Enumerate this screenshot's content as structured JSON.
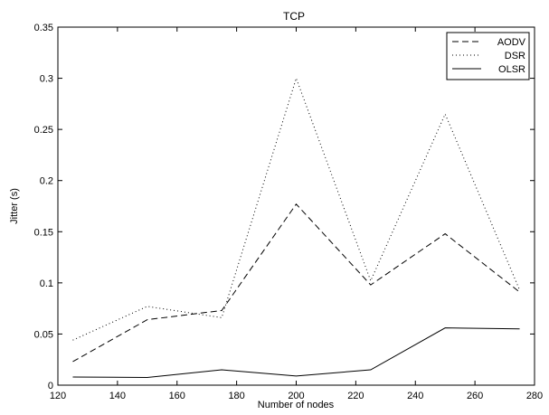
{
  "chart_data": {
    "type": "line",
    "title": "TCP",
    "xlabel": "Number of nodes",
    "ylabel": "Jitter (s)",
    "xlim": [
      120,
      280
    ],
    "ylim": [
      0,
      0.35
    ],
    "x_ticks": [
      120,
      140,
      160,
      180,
      200,
      220,
      240,
      260,
      280
    ],
    "y_ticks": [
      0,
      0.05,
      0.1,
      0.15,
      0.2,
      0.25,
      0.3,
      0.35
    ],
    "y_tick_labels": [
      "0",
      "0.05",
      "0.1",
      "0.15",
      "0.2",
      "0.25",
      "0.3",
      "0.35"
    ],
    "grid": false,
    "legend_position": "top-right",
    "x": [
      125,
      150,
      175,
      200,
      225,
      250,
      275
    ],
    "series": [
      {
        "name": "AODV",
        "style": "dashed",
        "color": "#000000",
        "values": [
          0.023,
          0.064,
          0.073,
          0.177,
          0.098,
          0.148,
          0.091
        ]
      },
      {
        "name": "DSR",
        "style": "dotted",
        "color": "#000000",
        "values": [
          0.044,
          0.077,
          0.066,
          0.3,
          0.102,
          0.265,
          0.093
        ]
      },
      {
        "name": "OLSR",
        "style": "solid",
        "color": "#000000",
        "values": [
          0.008,
          0.0075,
          0.015,
          0.009,
          0.015,
          0.056,
          0.055
        ]
      }
    ]
  }
}
